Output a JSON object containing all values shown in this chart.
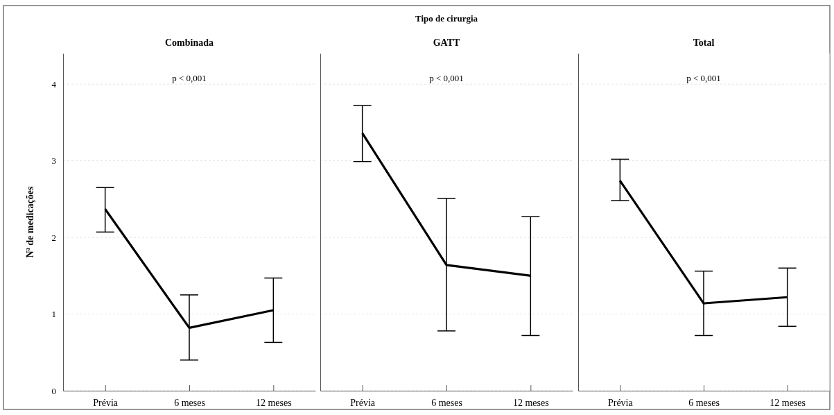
{
  "chart_data": [
    {
      "type": "line",
      "title": "Combinada",
      "ylabel": "Nª de medicações",
      "categories": [
        "Prévia",
        "6 meses",
        "12 meses"
      ],
      "ylim": [
        0,
        4.4
      ],
      "yticks": [
        0,
        1,
        2,
        3,
        4
      ],
      "grid": "y",
      "annotations": [
        "p < 0,001"
      ],
      "series": [
        {
          "color": "#000000",
          "values": [
            2.37,
            0.82,
            1.05
          ],
          "errors": [
            [
              2.07,
              2.65
            ],
            [
              0.4,
              1.25
            ],
            [
              0.63,
              1.47
            ]
          ]
        }
      ]
    },
    {
      "type": "line",
      "title": "Tipo de cirurgia",
      "subtitle": "GATT",
      "categories": [
        "Prévia",
        "6 meses",
        "12 meses"
      ],
      "ylim": [
        0,
        4.4
      ],
      "yticks": [
        0,
        1,
        2,
        3,
        4
      ],
      "grid": "y",
      "tick_labels": "x",
      "annotations": [
        "p < 0,001"
      ],
      "series": [
        {
          "color": "#000000",
          "values": [
            3.36,
            1.64,
            1.5
          ],
          "errors": [
            [
              2.99,
              3.72
            ],
            [
              0.78,
              2.51
            ],
            [
              0.72,
              2.27
            ]
          ]
        }
      ]
    },
    {
      "type": "line",
      "title": "Total",
      "categories": [
        "Prévia",
        "6 meses",
        "12 meses"
      ],
      "ylim": [
        0,
        4.4
      ],
      "yticks": [
        0,
        1,
        2,
        3,
        4
      ],
      "grid": "y",
      "tick_labels": "x",
      "annotations": [
        "p < 0,001"
      ],
      "series": [
        {
          "color": "#000000",
          "values": [
            2.74,
            1.14,
            1.22
          ],
          "errors": [
            [
              2.48,
              3.02
            ],
            [
              0.72,
              1.56
            ],
            [
              0.84,
              1.6
            ]
          ]
        }
      ]
    }
  ]
}
